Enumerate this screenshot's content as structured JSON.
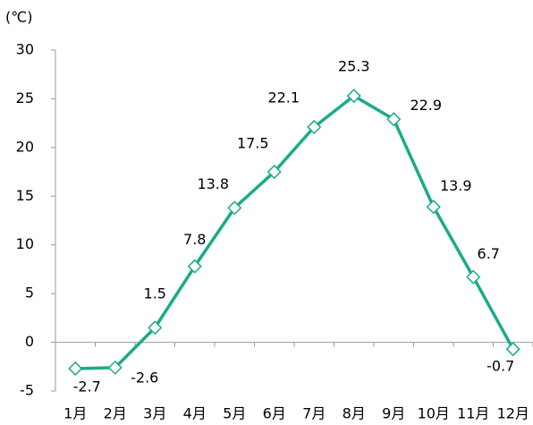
{
  "chart_data": {
    "type": "line",
    "y_label": "(℃)",
    "categories": [
      "1月",
      "2月",
      "3月",
      "4月",
      "5月",
      "6月",
      "7月",
      "8月",
      "9月",
      "10月",
      "11月",
      "12月"
    ],
    "series": [
      {
        "color": "#1aab8a",
        "values": [
          -2.7,
          -2.6,
          1.5,
          7.8,
          13.8,
          17.5,
          22.1,
          25.3,
          22.9,
          13.9,
          6.7,
          -0.7
        ]
      }
    ],
    "ylim": [
      -5,
      30
    ],
    "yticks": [
      -5,
      0,
      5,
      10,
      15,
      20,
      25,
      30
    ],
    "grid": false,
    "markers": "diamond"
  }
}
